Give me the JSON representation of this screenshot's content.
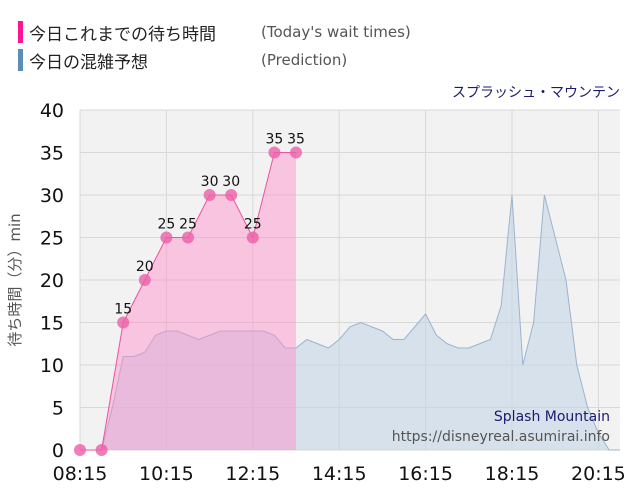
{
  "legend": [
    {
      "label": "今日これまでの待ち時間",
      "sub": "(Today's wait times)",
      "color": "#ff1493"
    },
    {
      "label": "今日の混雑予想",
      "sub": "(Prediction)",
      "color": "#5b8db8"
    }
  ],
  "ride_name": "スプラッシュ・マウンテン",
  "watermark": {
    "line1": "Splash Mountain",
    "line2": "https://disneyreal.asumirai.info"
  },
  "chart_data": {
    "type": "area",
    "ylabel": "待ち時間（分）min",
    "xlim": [
      "08:15",
      "20:45"
    ],
    "ylim": [
      0,
      40
    ],
    "yticks": [
      0,
      5,
      10,
      15,
      20,
      25,
      30,
      35,
      40
    ],
    "xticks": [
      "08:15",
      "10:15",
      "12:15",
      "14:15",
      "16:15",
      "18:15",
      "20:15"
    ],
    "grid": true,
    "series": [
      {
        "name": "(Today's wait times)",
        "color": "#ff1493",
        "x": [
          "08:15",
          "08:45",
          "09:15",
          "09:45",
          "10:15",
          "10:45",
          "11:15",
          "11:45",
          "12:15",
          "12:45",
          "13:15"
        ],
        "values": [
          0,
          0,
          15,
          20,
          25,
          25,
          30,
          30,
          25,
          35,
          35
        ]
      },
      {
        "name": "(Prediction)",
        "color": "#5b8db8",
        "x": [
          "08:15",
          "08:45",
          "09:00",
          "09:15",
          "09:30",
          "09:45",
          "10:00",
          "10:15",
          "10:30",
          "10:45",
          "11:00",
          "11:15",
          "11:30",
          "11:45",
          "12:00",
          "12:15",
          "12:30",
          "12:45",
          "13:00",
          "13:15",
          "13:30",
          "13:45",
          "14:00",
          "14:15",
          "14:30",
          "14:45",
          "15:00",
          "15:15",
          "15:30",
          "15:45",
          "16:00",
          "16:15",
          "16:30",
          "16:45",
          "17:00",
          "17:15",
          "17:30",
          "17:45",
          "18:00",
          "18:15",
          "18:30",
          "18:45",
          "19:00",
          "19:15",
          "19:30",
          "19:45",
          "20:00",
          "20:15",
          "20:30",
          "20:45"
        ],
        "values": [
          0,
          0,
          5,
          11,
          11,
          11.5,
          13.5,
          14,
          14,
          13.5,
          13,
          13.5,
          14,
          14,
          14,
          14,
          14,
          13.5,
          12,
          12,
          13,
          12.5,
          12,
          13,
          14.5,
          15,
          14.5,
          14,
          13,
          13,
          14.5,
          16,
          13.5,
          12.5,
          12,
          12,
          12.5,
          13,
          17,
          30,
          10,
          15,
          30,
          25,
          20,
          10,
          5,
          2,
          0,
          0
        ]
      }
    ]
  }
}
